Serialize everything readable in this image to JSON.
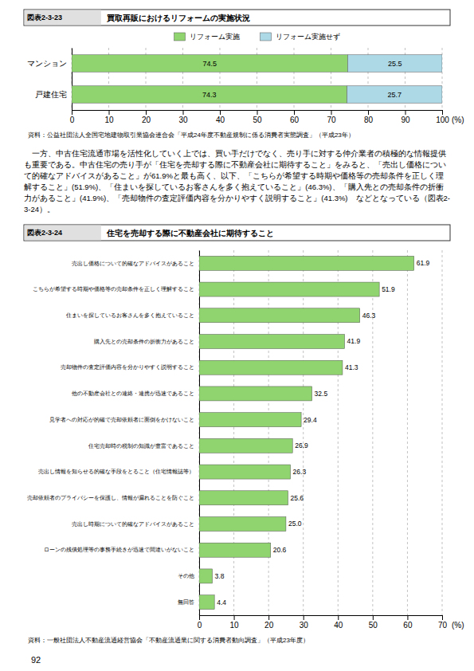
{
  "chart_data": [
    {
      "type": "bar",
      "orientation": "horizontal",
      "stacked": true,
      "figure_number": "図表2-3-23",
      "title": "買取再販におけるリフォームの実施状況",
      "categories": [
        "マンション",
        "戸建住宅"
      ],
      "series": [
        {
          "name": "リフォーム実施",
          "color": "#8fd46e",
          "values": [
            74.5,
            74.3
          ]
        },
        {
          "name": "リフォーム実施せず",
          "color": "#add8e6",
          "values": [
            25.5,
            25.7
          ]
        }
      ],
      "xlim": [
        0,
        100
      ],
      "xticks": [
        0,
        10,
        20,
        30,
        40,
        50,
        60,
        70,
        80,
        90,
        100
      ],
      "xlabel": "(%)",
      "grid": true,
      "legend": "top",
      "data_labels": true,
      "source": "資料：公益社団法人全国宅地建物取引業協会連合会「平成24年度不動産規制に係る消費者実態調査」（平成23年）"
    },
    {
      "type": "bar",
      "orientation": "horizontal",
      "figure_number": "図表2-3-24",
      "title": "住宅を売却する際に不動産会社に期待すること",
      "categories": [
        "売出し価格について的確なアドバイスがあること",
        "こちらが希望する時期や価格等の売却条件を正しく理解すること",
        "住まいを探しているお客さんを多く抱えていること",
        "購入先との売却条件の折衝力があること",
        "売却物件の査定評価内容を分かりやすく説明すること",
        "他の不動産会社との連絡・連携が迅速であること",
        "見学者への対応が的確で売却依頼者に面倒をかけないこと",
        "住宅売却時の税制の知識が豊富であること",
        "売出し情報を知らせる的確な手段をとること（住宅情報誌等）",
        "売却依頼者のプライバシーを保護し、情報が漏れることを防ぐこと",
        "売出し時期について的確なアドバイスがあること",
        "ローンの残債処理等の事務手続きが迅速で間違いがないこと",
        "その他",
        "無回答"
      ],
      "values": [
        61.9,
        51.9,
        46.3,
        41.9,
        41.3,
        32.5,
        29.4,
        26.9,
        26.3,
        25.6,
        25.0,
        20.6,
        3.8,
        4.4
      ],
      "value_labels": [
        "61.9",
        "51.9",
        "46.3",
        "41.9",
        "41.3",
        "32.5",
        "29.4",
        "26.9",
        "26.3",
        "25.6",
        "25.0",
        "20.6",
        "3.8",
        "4.4"
      ],
      "color": "#8fd46e",
      "xlim": [
        0,
        70
      ],
      "xticks": [
        0,
        10,
        20,
        30,
        40,
        50,
        60,
        70
      ],
      "xlabel": "(%)",
      "grid": true,
      "data_labels": true,
      "source": "資料：一般社団法人不動産流通経営協会「不動産流通業に関する消費者動向調査」（平成23年度）"
    }
  ],
  "body_text": "　一方、中古住宅流通市場を活性化していく上では、買い手だけでなく、売り手に対する仲介業者の積極的な情報提供も重要である。中古住宅の売り手が「住宅を売却する際に不動産会社に期待すること」をみると、「売出し価格について的確なアドバイスがあること」が61.9%と最も高く、以下、「こちらが希望する時期や価格等の売却条件を正しく理解すること」(51.9%)、「住まいを探しているお客さんを多く抱えていること」(46.3%)、「購入先との売却条件の折衝力があること」(41.9%)、「売却物件の査定評価内容を分かりやすく説明すること」(41.3%)　などとなっている（図表2-3-24）。",
  "page_number": "92"
}
